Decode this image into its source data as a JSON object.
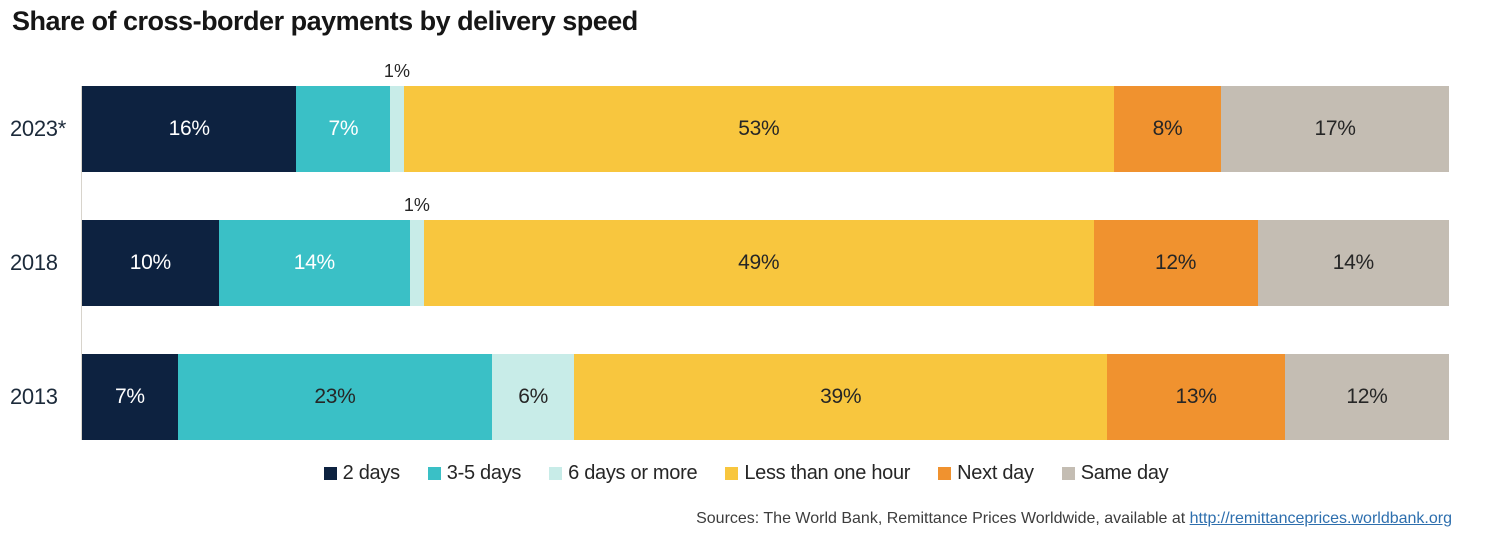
{
  "style": {
    "background": "#ffffff",
    "title_color": "#161616",
    "text_color": "#262626",
    "row_label_color": "#1c2a3a",
    "axis_color": "#d8d4cc",
    "source_text_color": "#3d3d3d",
    "link_color": "#2e6fae"
  },
  "source": {
    "prefix": "Sources: The World Bank, Remittance Prices Worldwide, available at ",
    "link": "http://remittanceprices.worldbank.org"
  },
  "chart_data": {
    "type": "bar",
    "stacked": true,
    "orientation": "horizontal",
    "title": "Share of cross-border payments by delivery speed",
    "categories": [
      "2023*",
      "2018",
      "2013"
    ],
    "value_suffix": "%",
    "xlim": [
      0,
      100
    ],
    "grid": false,
    "legend_position": "bottom",
    "series": [
      {
        "name": "2 days",
        "color": "#0d2240",
        "values": [
          16,
          10,
          7
        ],
        "label_colors": [
          "#ffffff",
          "#ffffff",
          "#ffffff"
        ],
        "label_positions": [
          "inside",
          "inside",
          "inside"
        ]
      },
      {
        "name": "3-5 days",
        "color": "#3ac0c6",
        "values": [
          7,
          14,
          23
        ],
        "label_colors": [
          "#ffffff",
          "#ffffff",
          "#262626"
        ],
        "label_positions": [
          "inside",
          "inside",
          "inside"
        ]
      },
      {
        "name": "6 days or more",
        "color": "#c8ece8",
        "values": [
          1,
          1,
          6
        ],
        "label_colors": [
          "#262626",
          "#262626",
          "#262626"
        ],
        "label_positions": [
          "above",
          "above",
          "inside"
        ]
      },
      {
        "name": "Less than one hour",
        "color": "#f8c63e",
        "values": [
          53,
          49,
          39
        ],
        "label_colors": [
          "#262626",
          "#262626",
          "#262626"
        ],
        "label_positions": [
          "inside",
          "inside",
          "inside"
        ]
      },
      {
        "name": "Next day",
        "color": "#f0922f",
        "values": [
          8,
          12,
          13
        ],
        "label_colors": [
          "#262626",
          "#262626",
          "#262626"
        ],
        "label_positions": [
          "inside",
          "inside",
          "inside"
        ]
      },
      {
        "name": "Same day",
        "color": "#c4bdb3",
        "values": [
          17,
          14,
          12
        ],
        "label_colors": [
          "#262626",
          "#262626",
          "#262626"
        ],
        "label_positions": [
          "inside",
          "inside",
          "inside"
        ]
      }
    ]
  }
}
